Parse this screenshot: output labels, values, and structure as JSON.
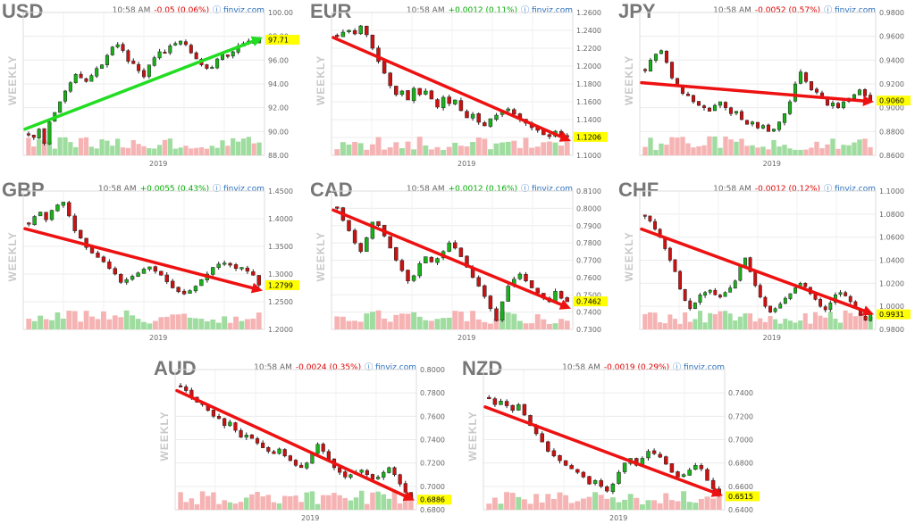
{
  "header": {
    "time": "10:58 AM",
    "source": "finviz.com",
    "period_label": "WEEKLY"
  },
  "colors": {
    "up": "#19b219",
    "down": "#cc1111",
    "arrow_up": "#22dd22",
    "arrow_down": "#ee1111",
    "highlight": "#ffff00",
    "vol_up": "#9fdc9f",
    "vol_down": "#f6b3b3"
  },
  "chart_data": [
    {
      "type": "candlestick",
      "symbol": "USD",
      "change": "-0.05 (0.06%)",
      "direction": "neg",
      "ylim": [
        88.0,
        100.0
      ],
      "yticks": [
        "100.00",
        "98.00",
        "96.00",
        "94.00",
        "92.00",
        "90.00",
        "88.00"
      ],
      "x_label": "2019",
      "last": "97.71",
      "trend": "up",
      "path": [
        89.7,
        89.5,
        90.2,
        89.0,
        90.8,
        91.6,
        92.5,
        93.4,
        94.1,
        94.8,
        94.5,
        94.2,
        94.7,
        95.3,
        95.6,
        96.4,
        97.1,
        97.3,
        96.8,
        95.9,
        95.7,
        95.1,
        94.6,
        95.6,
        96.2,
        96.7,
        96.6,
        97.2,
        97.4,
        97.6,
        97.3,
        96.6,
        96.1,
        95.6,
        95.3,
        95.4,
        96.1,
        96.5,
        96.3,
        96.7,
        97.2,
        97.4,
        97.6,
        97.4,
        97.71
      ],
      "trend_from": 90.2,
      "trend_to": 97.9
    },
    {
      "type": "candlestick",
      "symbol": "EUR",
      "change": "+0.0012 (0.11%)",
      "direction": "pos",
      "ylim": [
        1.1,
        1.26
      ],
      "yticks": [
        "1.2600",
        "1.2400",
        "1.2200",
        "1.2000",
        "1.1800",
        "1.1600",
        "1.1400",
        "1.1200",
        "1.1000"
      ],
      "x_label": "2019",
      "last": "1.1206",
      "trend": "down",
      "path": [
        1.233,
        1.238,
        1.24,
        1.236,
        1.245,
        1.235,
        1.22,
        1.205,
        1.192,
        1.178,
        1.168,
        1.172,
        1.162,
        1.175,
        1.168,
        1.172,
        1.163,
        1.154,
        1.165,
        1.158,
        1.162,
        1.15,
        1.142,
        1.146,
        1.137,
        1.133,
        1.141,
        1.145,
        1.15,
        1.152,
        1.146,
        1.14,
        1.136,
        1.131,
        1.128,
        1.123,
        1.121,
        1.127,
        1.122,
        1.1206
      ],
      "trend_from": 1.232,
      "trend_to": 1.116
    },
    {
      "type": "candlestick",
      "symbol": "JPY",
      "change": "-0.0052 (0.57%)",
      "direction": "neg",
      "ylim": [
        0.86,
        0.98
      ],
      "yticks": [
        "0.9800",
        "0.9600",
        "0.9400",
        "0.9200",
        "0.9000",
        "0.8800",
        "0.8600"
      ],
      "x_label": "2019",
      "last": "0.9060",
      "trend": "down",
      "path": [
        0.931,
        0.94,
        0.945,
        0.948,
        0.938,
        0.925,
        0.918,
        0.912,
        0.91,
        0.905,
        0.902,
        0.9,
        0.897,
        0.902,
        0.905,
        0.9,
        0.895,
        0.897,
        0.89,
        0.886,
        0.888,
        0.883,
        0.885,
        0.88,
        0.882,
        0.888,
        0.895,
        0.905,
        0.92,
        0.93,
        0.922,
        0.915,
        0.913,
        0.908,
        0.902,
        0.904,
        0.9,
        0.905,
        0.908,
        0.911,
        0.915,
        0.91,
        0.906
      ],
      "trend_from": 0.921,
      "trend_to": 0.905
    },
    {
      "type": "candlestick",
      "symbol": "GBP",
      "change": "+0.0055 (0.43%)",
      "direction": "pos",
      "ylim": [
        1.2,
        1.45
      ],
      "yticks": [
        "1.4500",
        "1.4000",
        "1.3500",
        "1.3000",
        "1.2500",
        "1.2000"
      ],
      "x_label": "2019",
      "last": "1.2799",
      "trend": "down",
      "path": [
        1.39,
        1.404,
        1.412,
        1.398,
        1.415,
        1.425,
        1.43,
        1.405,
        1.378,
        1.365,
        1.348,
        1.338,
        1.33,
        1.322,
        1.31,
        1.3,
        1.285,
        1.29,
        1.296,
        1.302,
        1.309,
        1.313,
        1.305,
        1.298,
        1.286,
        1.275,
        1.268,
        1.264,
        1.27,
        1.278,
        1.29,
        1.3,
        1.312,
        1.318,
        1.32,
        1.316,
        1.31,
        1.312,
        1.305,
        1.298,
        1.28
      ],
      "trend_from": 1.382,
      "trend_to": 1.27
    },
    {
      "type": "candlestick",
      "symbol": "CAD",
      "change": "+0.0012 (0.16%)",
      "direction": "pos",
      "ylim": [
        0.73,
        0.81
      ],
      "yticks": [
        "0.8100",
        "0.8000",
        "0.7900",
        "0.7800",
        "0.7700",
        "0.7600",
        "0.7500",
        "0.7400",
        "0.7300"
      ],
      "x_label": "2019",
      "last": "0.7462",
      "trend": "down",
      "path": [
        0.8,
        0.793,
        0.787,
        0.78,
        0.775,
        0.783,
        0.792,
        0.79,
        0.784,
        0.777,
        0.77,
        0.764,
        0.758,
        0.761,
        0.768,
        0.772,
        0.769,
        0.771,
        0.775,
        0.78,
        0.777,
        0.772,
        0.766,
        0.76,
        0.755,
        0.749,
        0.742,
        0.735,
        0.746,
        0.755,
        0.759,
        0.762,
        0.758,
        0.754,
        0.751,
        0.748,
        0.746,
        0.752,
        0.748,
        0.746
      ],
      "trend_from": 0.799,
      "trend_to": 0.742
    },
    {
      "type": "candlestick",
      "symbol": "CHF",
      "change": "-0.0012 (0.12%)",
      "direction": "neg",
      "ylim": [
        0.98,
        1.1
      ],
      "yticks": [
        "1.1000",
        "1.0800",
        "1.0600",
        "1.0400",
        "1.0200",
        "1.0000",
        "0.9800"
      ],
      "x_label": "2019",
      "last": "0.9931",
      "trend": "down",
      "path": [
        1.078,
        1.074,
        1.067,
        1.06,
        1.05,
        1.04,
        1.03,
        1.015,
        1.005,
        0.998,
        1.003,
        1.01,
        1.012,
        1.014,
        1.01,
        1.008,
        1.012,
        1.016,
        1.022,
        1.035,
        1.042,
        1.03,
        1.018,
        1.008,
        1.0,
        0.995,
        0.998,
        1.002,
        1.007,
        1.011,
        1.016,
        1.02,
        1.017,
        1.011,
        1.006,
        1.0,
        0.997,
        1.003,
        1.01,
        1.012,
        1.009,
        1.004,
        0.998,
        0.992,
        0.988,
        0.993
      ],
      "trend_from": 1.067,
      "trend_to": 0.993
    },
    {
      "type": "candlestick",
      "symbol": "AUD",
      "change": "-0.0024 (0.35%)",
      "direction": "neg",
      "ylim": [
        0.68,
        0.8
      ],
      "yticks": [
        "0.8000",
        "0.7800",
        "0.7600",
        "0.7400",
        "0.7200",
        "0.7000",
        "0.6800"
      ],
      "x_label": "2019",
      "last": "0.6886",
      "trend": "down",
      "path": [
        0.785,
        0.782,
        0.776,
        0.772,
        0.77,
        0.765,
        0.76,
        0.758,
        0.752,
        0.755,
        0.748,
        0.742,
        0.744,
        0.741,
        0.737,
        0.733,
        0.73,
        0.728,
        0.732,
        0.726,
        0.722,
        0.718,
        0.716,
        0.72,
        0.728,
        0.736,
        0.73,
        0.723,
        0.716,
        0.712,
        0.708,
        0.71,
        0.712,
        0.714,
        0.71,
        0.706,
        0.708,
        0.712,
        0.716,
        0.71,
        0.702,
        0.695,
        0.689
      ],
      "trend_from": 0.782,
      "trend_to": 0.688
    },
    {
      "type": "candlestick",
      "symbol": "NZD",
      "change": "-0.0019 (0.29%)",
      "direction": "neg",
      "ylim": [
        0.64,
        0.76
      ],
      "yticks": [
        "0.7400",
        "0.7200",
        "0.7000",
        "0.6800",
        "0.6600",
        "0.6400"
      ],
      "x_label": "2019",
      "last": "0.6515",
      "trend": "down",
      "path": [
        0.735,
        0.73,
        0.733,
        0.729,
        0.725,
        0.73,
        0.721,
        0.712,
        0.705,
        0.698,
        0.69,
        0.686,
        0.682,
        0.678,
        0.675,
        0.672,
        0.668,
        0.662,
        0.665,
        0.66,
        0.656,
        0.662,
        0.672,
        0.68,
        0.684,
        0.678,
        0.684,
        0.69,
        0.688,
        0.685,
        0.679,
        0.672,
        0.668,
        0.67,
        0.674,
        0.678,
        0.675,
        0.665,
        0.658,
        0.652
      ],
      "trend_from": 0.728,
      "trend_to": 0.652
    }
  ]
}
